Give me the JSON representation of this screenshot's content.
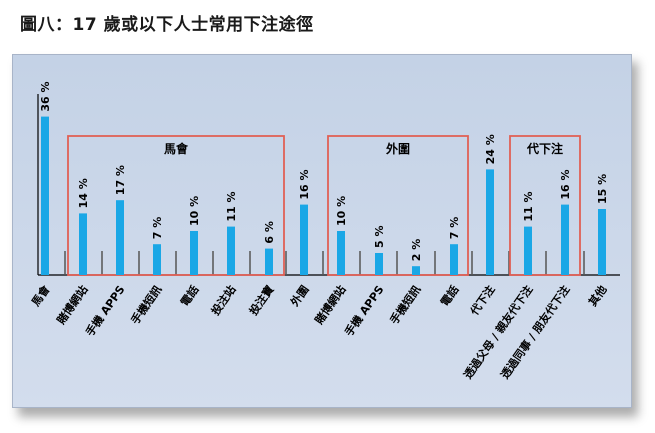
{
  "figure": {
    "title": "圖八：17 歲或以下人士常用下注途徑"
  },
  "chart_data": {
    "type": "bar",
    "unit": "%",
    "ylim": [
      0,
      40
    ],
    "categories": [
      "馬會",
      "賭博網站",
      "手機 APPS",
      "手機短訊",
      "電話",
      "投注站",
      "投注寶",
      "外圍",
      "賭博網站",
      "手機 APPS",
      "手機短訊",
      "電話",
      "代下注",
      "透過父母 / 親友代下注",
      "透過同事 / 朋友代下注",
      "其他"
    ],
    "values": [
      36,
      14,
      17,
      7,
      10,
      11,
      6,
      16,
      10,
      5,
      2,
      7,
      24,
      11,
      16,
      15
    ],
    "value_labels": [
      "36 %",
      "14 %",
      "17 %",
      "7 %",
      "10 %",
      "11 %",
      "6 %",
      "16 %",
      "10 %",
      "5 %",
      "2 %",
      "7 %",
      "24 %",
      "11 %",
      "16 %",
      "15 %"
    ],
    "groups": [
      {
        "label": "馬會",
        "first": 1,
        "last": 6
      },
      {
        "label": "外圍",
        "first": 8,
        "last": 11
      },
      {
        "label": "代下注",
        "first": 13,
        "last": 14
      }
    ],
    "colors": {
      "bar": "#1aa7e6",
      "group_box": "#e06055",
      "panel": "#c8d5e8"
    },
    "grid": false,
    "legend": "none"
  }
}
